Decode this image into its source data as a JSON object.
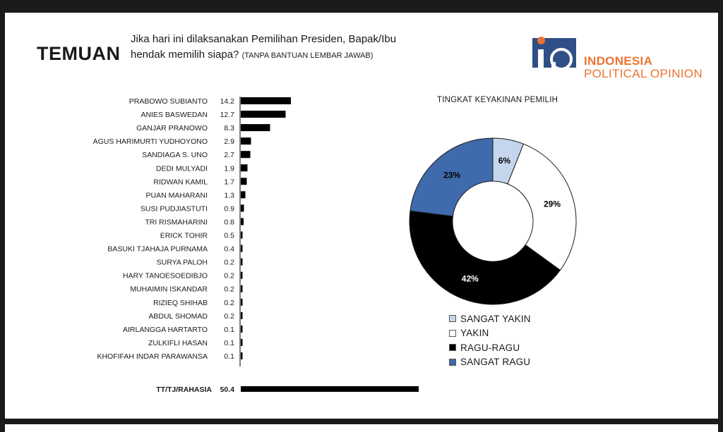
{
  "header": {
    "title": "TEMUAN",
    "question_line1": "Jika hari ini dilaksanakan Pemilihan Presiden, Bapak/Ibu",
    "question_line2": "hendak memilih siapa?",
    "question_note": "(TANPA BANTUAN LEMBAR JAWAB)"
  },
  "logo": {
    "name_line1": "INDONESIA",
    "name_line2": "POLITICAL OPINION",
    "accent_color": "#e97431",
    "mark_color": "#2f4f86"
  },
  "chart_data": [
    {
      "type": "bar",
      "orientation": "horizontal",
      "categories": [
        "PRABOWO SUBIANTO",
        "ANIES BASWEDAN",
        "GANJAR PRANOWO",
        "AGUS HARIMURTI YUDHOYONO",
        "SANDIAGA S. UNO",
        "DEDI MULYADI",
        "RIDWAN KAMIL",
        "PUAN MAHARANI",
        "SUSI PUDJIASTUTI",
        "TRI RISMAHARINI",
        "ERICK TOHIR",
        "BASUKI TJAHAJA PURNAMA",
        "SURYA PALOH",
        "HARY TANOESOEDIBJO",
        "MUHAIMIN ISKANDAR",
        "RIZIEQ SHIHAB",
        "ABDUL SHOMAD",
        "AIRLANGGA HARTARTO",
        "ZULKIFLI HASAN",
        "KHOFIFAH INDAR PARAWANSA"
      ],
      "values": [
        14.2,
        12.7,
        8.3,
        2.9,
        2.7,
        1.9,
        1.7,
        1.3,
        0.9,
        0.8,
        0.5,
        0.4,
        0.2,
        0.2,
        0.2,
        0.2,
        0.2,
        0.1,
        0.1,
        0.1
      ],
      "values_display": [
        "14.2",
        "12.7",
        "8.3",
        "2.9",
        "2.7",
        "1.9",
        "1.7",
        "1.3",
        "0.9",
        "0.8",
        "0.5",
        "0.4",
        "0.2",
        "0.2",
        "0.2",
        "0.2",
        "0.2",
        "0.1",
        "0.1",
        "0.1"
      ],
      "total": {
        "label": "TT/TJ/RAHASIA",
        "value": 50.4,
        "display": "50.4"
      },
      "bar_color": "#000000"
    },
    {
      "type": "pie",
      "variant": "donut",
      "title": "TINGKAT KEYAKINAN PEMILIH",
      "slices": [
        {
          "label": "SANGAT YAKIN",
          "value": 6,
          "display": "6%",
          "color": "#c5d6ec",
          "text_color": "#000000"
        },
        {
          "label": "YAKIN",
          "value": 29,
          "display": "29%",
          "color": "#ffffff",
          "text_color": "#000000"
        },
        {
          "label": "RAGU-RAGU",
          "value": 42,
          "display": "42%",
          "color": "#000000",
          "text_color": "#ffffff"
        },
        {
          "label": "SANGAT RAGU",
          "value": 23,
          "display": "23%",
          "color": "#3f6aab",
          "text_color": "#000000"
        }
      ],
      "legend_position": "bottom-left"
    }
  ]
}
